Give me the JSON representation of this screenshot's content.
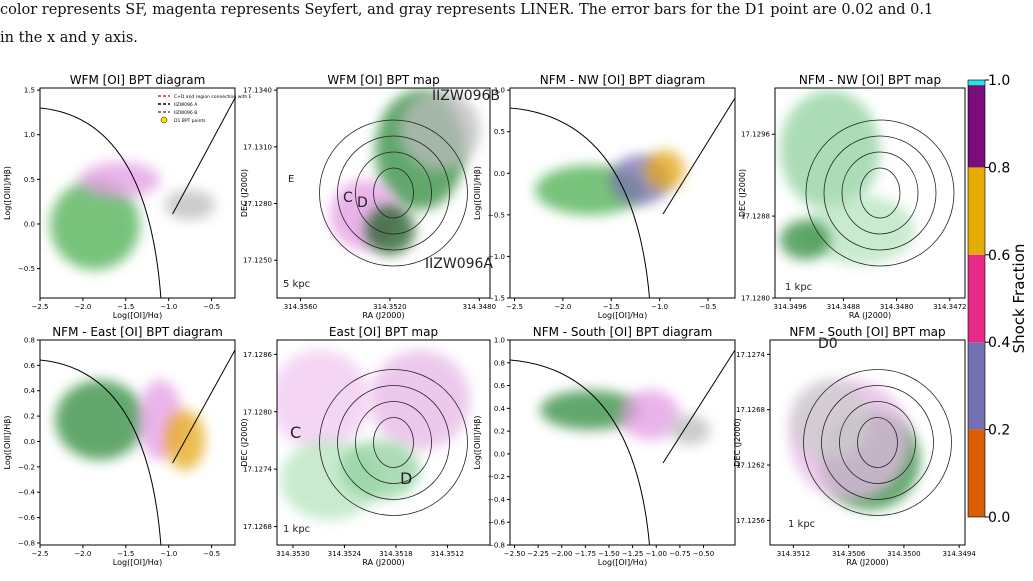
{
  "caption": [
    "color represents SF, magenta represents Seyfert, and gray represents LINER. The error bars for the D1 point are 0.02 and 0.1",
    "in the x and y axis."
  ],
  "panels": [
    {
      "title": "WFM [OI] BPT diagram",
      "xlabel": "Log([OI]/Hα)",
      "ylabel": "Log([OIII]/Hβ)",
      "xticks": [
        "−2.5",
        "−2.0",
        "−1.5",
        "−1.0",
        "−0.5"
      ],
      "yticks": [
        "1.5",
        "1.0",
        "0.5",
        "0.0",
        "−0.5"
      ],
      "legend": [
        "C+D and region connecting with E",
        "IIZW096 A",
        "IIZW096 B",
        "D1 BPT points"
      ]
    },
    {
      "title": "WFM [OI] BPT map",
      "xlabel": "RA (J2000)",
      "ylabel": "DEC (J2000)",
      "xticks": [
        "314.3560",
        "314.3520",
        "314.3480"
      ],
      "yticks": [
        "17.1340",
        "17.1310",
        "17.1280",
        "17.1250"
      ],
      "annotations": [
        "IIZW096B",
        "IIZW096A",
        "C",
        "D",
        "E",
        "5 kpc"
      ]
    },
    {
      "title": "NFM - NW [OI] BPT diagram",
      "xlabel": "Log([OI]/Hα)",
      "ylabel": "Log([OIII]/Hβ)",
      "xticks": [
        "−2.5",
        "−2.0",
        "−1.5",
        "−1.0",
        "−0.5"
      ],
      "yticks": [
        "1.0",
        "0.5",
        "0.0",
        "−0.5",
        "−1.0",
        "−1.5"
      ]
    },
    {
      "title": "NFM - NW [OI] BPT map",
      "xlabel": "RA (J2000)",
      "ylabel": "DEC (J2000)",
      "xticks": [
        "314.3496",
        "314.3488",
        "314.3480",
        "314.3472"
      ],
      "yticks": [
        "17.1296",
        "17.1288",
        "17.1280"
      ],
      "annotations": [
        "1 kpc"
      ]
    },
    {
      "title": "NFM - East [OI] BPT diagram",
      "xlabel": "Log([OI]/Hα)",
      "ylabel": "Log([OIII]/Hβ)",
      "xticks": [
        "−2.5",
        "−2.0",
        "−1.5",
        "−1.0",
        "−0.5"
      ],
      "yticks": [
        "0.8",
        "0.6",
        "0.4",
        "0.2",
        "0.0",
        "−0.2",
        "−0.4",
        "−0.6",
        "−0.8"
      ]
    },
    {
      "title": "East [OI] BPT map",
      "xlabel": "RA (J2000)",
      "ylabel": "DEC (J2000)",
      "xticks": [
        "314.3530",
        "314.3524",
        "314.3518",
        "314.3512"
      ],
      "yticks": [
        "17.1286",
        "17.1280",
        "17.1274",
        "17.1268"
      ],
      "annotations": [
        "1 kpc",
        "C",
        "D"
      ]
    },
    {
      "title": "NFM - South [OI] BPT diagram",
      "xlabel": "Log([OI]/Hα)",
      "ylabel": "Log([OIII]/Hβ)",
      "xticks": [
        "−2.50",
        "−2.25",
        "−2.00",
        "−1.75",
        "−1.50",
        "−1.25",
        "−1.00",
        "−0.75",
        "−0.50"
      ],
      "yticks": [
        "1.0",
        "0.8",
        "0.6",
        "0.4",
        "0.2",
        "0.0",
        "−0.2",
        "−0.4",
        "−0.6",
        "−0.8"
      ]
    },
    {
      "title": "NFM - South [OI] BPT map",
      "xlabel": "RA (J2000)",
      "ylabel": "DEC (J2000)",
      "xticks": [
        "314.3512",
        "314.3506",
        "314.3500",
        "314.3494"
      ],
      "yticks": [
        "17.1274",
        "17.1268",
        "17.1262",
        "17.1256"
      ],
      "annotations": [
        "1 kpc",
        "D0"
      ]
    }
  ],
  "colorbar": {
    "label": "Shock Fraction",
    "ticks": [
      "0.0",
      "0.2",
      "0.4",
      "0.6",
      "0.8",
      "1.0"
    ]
  }
}
